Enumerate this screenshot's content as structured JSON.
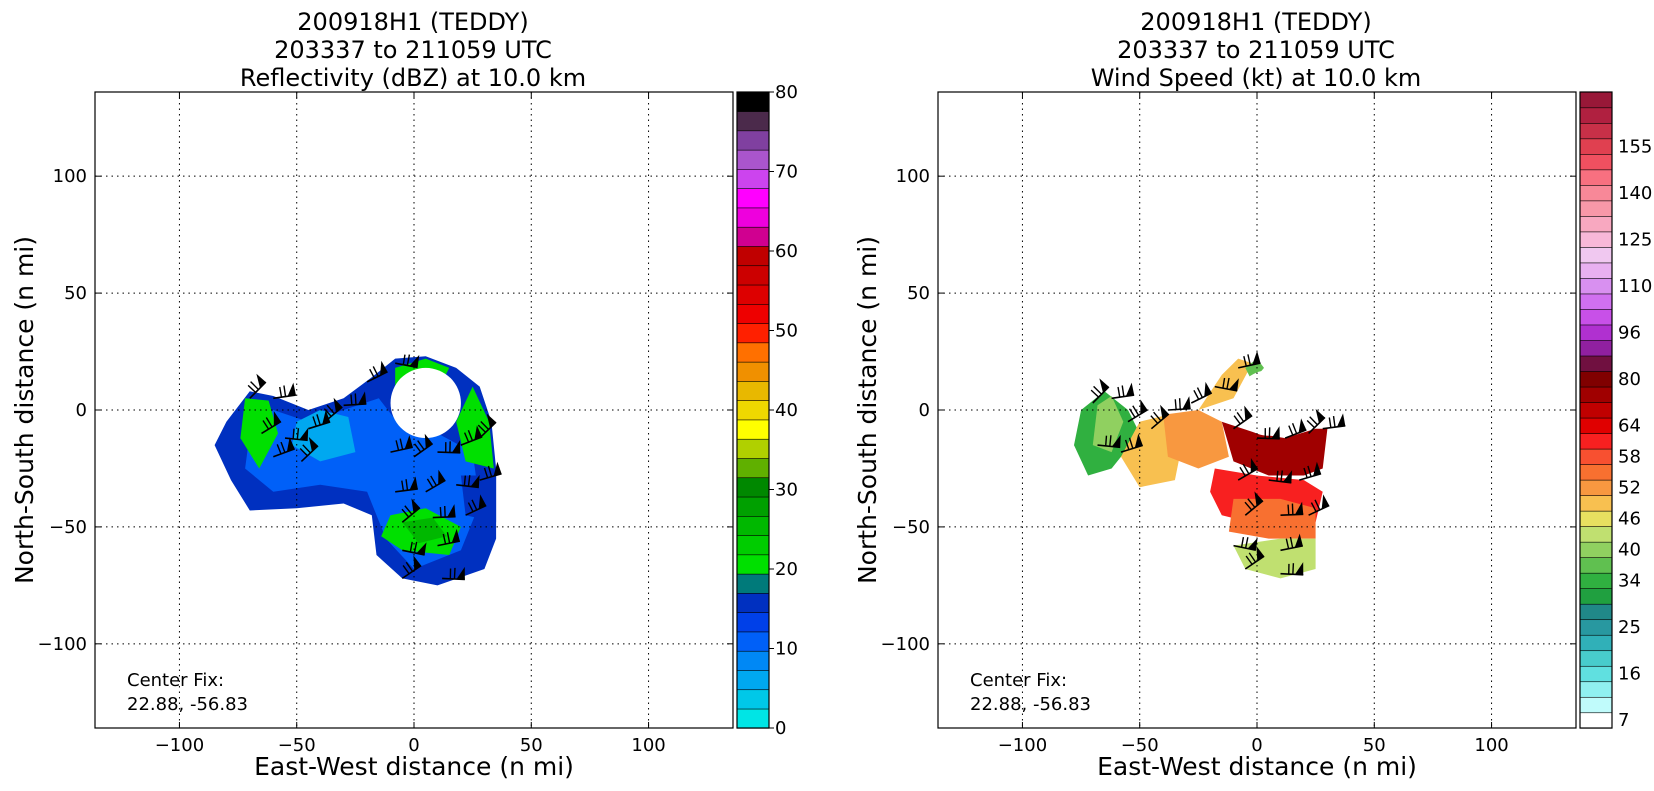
{
  "chart_data": [
    {
      "type": "heatmap",
      "field": "reflectivity",
      "title_lines": [
        "200918H1 (TEDDY)",
        "203337 to 211059 UTC",
        "Reflectivity (dBZ) at 10.0 km"
      ],
      "xlabel": "East-West distance (n mi)",
      "ylabel": "North-South distance (n mi)",
      "xlim": [
        -136,
        136
      ],
      "ylim": [
        -136,
        136
      ],
      "xticks": [
        -100,
        -50,
        0,
        50,
        100
      ],
      "yticks": [
        -100,
        -50,
        0,
        50,
        100
      ],
      "tick_labels_x": [
        "−100",
        "−50",
        "0",
        "50",
        "100"
      ],
      "tick_labels_y": [
        "−100",
        "−50",
        "0",
        "50",
        "100"
      ],
      "grid": true,
      "center_fix_label": "Center Fix:",
      "center_fix_value": "22.88, -56.83",
      "colorbar": {
        "min": 0,
        "max": 80,
        "step": 5,
        "ticks": [
          0,
          10,
          20,
          30,
          40,
          50,
          60,
          70,
          80
        ],
        "tick_labels": [
          "0",
          "10",
          "20",
          "30",
          "40",
          "50",
          "60",
          "70",
          "80"
        ],
        "colors": [
          "#00e5e5",
          "#00c8e8",
          "#00a8f0",
          "#0088f5",
          "#0060f8",
          "#0040e8",
          "#0030c0",
          "#007a7a",
          "#00e000",
          "#00cc00",
          "#00b800",
          "#00a000",
          "#008800",
          "#60b000",
          "#b0d000",
          "#ffff00",
          "#eed800",
          "#e8b800",
          "#f09000",
          "#ff7000",
          "#ff2000",
          "#ee0000",
          "#dd0000",
          "#cc0000",
          "#c00000",
          "#d00090",
          "#ee00dd",
          "#ff00ff",
          "#cc44ee",
          "#aa55cc",
          "#8040a0",
          "#4b2a4b",
          "#000000"
        ]
      },
      "regions": [
        {
          "level": 15,
          "points": [
            [
              -80,
              -5
            ],
            [
              -70,
              8
            ],
            [
              -60,
              6
            ],
            [
              -45,
              0
            ],
            [
              -30,
              5
            ],
            [
              -18,
              14
            ],
            [
              -8,
              22
            ],
            [
              5,
              23
            ],
            [
              18,
              18
            ],
            [
              28,
              10
            ],
            [
              33,
              -5
            ],
            [
              35,
              -25
            ],
            [
              35,
              -55
            ],
            [
              30,
              -68
            ],
            [
              10,
              -75
            ],
            [
              -5,
              -72
            ],
            [
              -16,
              -62
            ],
            [
              -18,
              -45
            ],
            [
              -30,
              -40
            ],
            [
              -50,
              -42
            ],
            [
              -70,
              -43
            ],
            [
              -78,
              -30
            ],
            [
              -85,
              -15
            ]
          ]
        },
        {
          "level": 10,
          "points": [
            [
              -70,
              -10
            ],
            [
              -60,
              0
            ],
            [
              -45,
              -5
            ],
            [
              -30,
              0
            ],
            [
              -15,
              5
            ],
            [
              -5,
              -8
            ],
            [
              10,
              -10
            ],
            [
              25,
              -18
            ],
            [
              28,
              -40
            ],
            [
              20,
              -60
            ],
            [
              0,
              -68
            ],
            [
              -12,
              -55
            ],
            [
              -20,
              -35
            ],
            [
              -40,
              -32
            ],
            [
              -60,
              -35
            ],
            [
              -72,
              -25
            ]
          ]
        },
        {
          "level": 20,
          "points": [
            [
              -8,
              18
            ],
            [
              5,
              22
            ],
            [
              15,
              18
            ],
            [
              10,
              8
            ],
            [
              0,
              5
            ],
            [
              -8,
              10
            ]
          ]
        },
        {
          "level": 20,
          "points": [
            [
              25,
              10
            ],
            [
              32,
              -5
            ],
            [
              34,
              -25
            ],
            [
              22,
              -22
            ],
            [
              18,
              -5
            ]
          ]
        },
        {
          "level": 20,
          "points": [
            [
              -72,
              5
            ],
            [
              -62,
              4
            ],
            [
              -58,
              -10
            ],
            [
              -66,
              -25
            ],
            [
              -74,
              -12
            ]
          ]
        },
        {
          "level": 20,
          "points": [
            [
              -10,
              -45
            ],
            [
              5,
              -42
            ],
            [
              20,
              -50
            ],
            [
              15,
              -62
            ],
            [
              -5,
              -60
            ],
            [
              -14,
              -54
            ]
          ]
        },
        {
          "level": 25,
          "points": [
            [
              -5,
              -48
            ],
            [
              8,
              -46
            ],
            [
              14,
              -54
            ],
            [
              2,
              -57
            ]
          ]
        },
        {
          "level": 15,
          "points": [
            [
              20,
              -28
            ],
            [
              35,
              -28
            ],
            [
              35,
              -48
            ],
            [
              22,
              -45
            ]
          ]
        },
        {
          "level": 5,
          "points": [
            [
              -50,
              -5
            ],
            [
              -40,
              0
            ],
            [
              -28,
              -3
            ],
            [
              -25,
              -18
            ],
            [
              -40,
              -22
            ],
            [
              -52,
              -15
            ]
          ]
        }
      ],
      "eye": {
        "cx": 5,
        "cy": 3,
        "r": 15
      },
      "barbs": [
        [
          -70,
          5
        ],
        [
          -60,
          5
        ],
        [
          -65,
          -10
        ],
        [
          -55,
          -12
        ],
        [
          -45,
          -8
        ],
        [
          -38,
          -5
        ],
        [
          -30,
          2
        ],
        [
          -20,
          12
        ],
        [
          -8,
          20
        ],
        [
          -10,
          -18
        ],
        [
          0,
          -20
        ],
        [
          10,
          -18
        ],
        [
          20,
          -15
        ],
        [
          28,
          -12
        ],
        [
          -8,
          -35
        ],
        [
          5,
          -35
        ],
        [
          18,
          -32
        ],
        [
          28,
          -30
        ],
        [
          -5,
          -48
        ],
        [
          8,
          -46
        ],
        [
          22,
          -45
        ],
        [
          -5,
          -60
        ],
        [
          10,
          -58
        ],
        [
          -5,
          -72
        ],
        [
          12,
          -72
        ],
        [
          -60,
          -20
        ],
        [
          -48,
          -22
        ]
      ]
    },
    {
      "type": "heatmap",
      "field": "wind_speed",
      "title_lines": [
        "200918H1 (TEDDY)",
        "203337 to 211059 UTC",
        "Wind Speed (kt) at 10.0 km"
      ],
      "xlabel": "East-West distance (n mi)",
      "ylabel": "North-South distance (n mi)",
      "xlim": [
        -136,
        136
      ],
      "ylim": [
        -136,
        136
      ],
      "xticks": [
        -100,
        -50,
        0,
        50,
        100
      ],
      "yticks": [
        -100,
        -50,
        0,
        50,
        100
      ],
      "tick_labels_x": [
        "−100",
        "−50",
        "0",
        "50",
        "100"
      ],
      "tick_labels_y": [
        "−100",
        "−50",
        "0",
        "50",
        "100"
      ],
      "grid": true,
      "center_fix_label": "Center Fix:",
      "center_fix_value": "22.88, -56.83",
      "colorbar": {
        "tick_labels": [
          "7",
          "16",
          "25",
          "34",
          "40",
          "46",
          "52",
          "58",
          "64",
          "80",
          "96",
          "110",
          "125",
          "140",
          "155"
        ],
        "tick_bins": [
          0,
          3,
          6,
          9,
          11,
          13,
          15,
          17,
          19,
          22,
          25,
          28,
          31,
          34,
          37
        ],
        "colors": [
          "#ffffff",
          "#c0fbfb",
          "#90f0f0",
          "#60e0e0",
          "#48cccc",
          "#30b0b8",
          "#2898a0",
          "#208888",
          "#20a040",
          "#30b040",
          "#60c050",
          "#90d060",
          "#c0e070",
          "#e8e060",
          "#f8c050",
          "#f89840",
          "#f87030",
          "#f85030",
          "#f82020",
          "#e00000",
          "#c00000",
          "#a00000",
          "#800000",
          "#701040",
          "#9020a0",
          "#b030d0",
          "#c850e8",
          "#d070f0",
          "#d890f0",
          "#e8b0f0",
          "#f0c8f0",
          "#f8b8d8",
          "#f8a8c0",
          "#f898a8",
          "#f88898",
          "#f87080",
          "#f05060",
          "#e04050",
          "#c83048",
          "#b02040",
          "#981838"
        ]
      },
      "regions": [
        {
          "level": 34,
          "points": [
            [
              -75,
              0
            ],
            [
              -65,
              8
            ],
            [
              -55,
              0
            ],
            [
              -50,
              -10
            ],
            [
              -62,
              -25
            ],
            [
              -72,
              -28
            ],
            [
              -78,
              -15
            ]
          ]
        },
        {
          "level": 44,
          "points": [
            [
              -68,
              2
            ],
            [
              -62,
              6
            ],
            [
              -57,
              -5
            ],
            [
              -62,
              -18
            ],
            [
              -70,
              -15
            ]
          ]
        },
        {
          "level": 56,
          "points": [
            [
              -50,
              -5
            ],
            [
              -38,
              -2
            ],
            [
              -30,
              -5
            ],
            [
              -35,
              -30
            ],
            [
              -50,
              -33
            ],
            [
              -58,
              -20
            ]
          ]
        },
        {
          "level": 60,
          "points": [
            [
              -40,
              -2
            ],
            [
              -25,
              0
            ],
            [
              -15,
              -5
            ],
            [
              -12,
              -20
            ],
            [
              -25,
              -25
            ],
            [
              -38,
              -20
            ]
          ]
        },
        {
          "level": 56,
          "points": [
            [
              -25,
              0
            ],
            [
              -15,
              15
            ],
            [
              -8,
              22
            ],
            [
              -2,
              20
            ],
            [
              -10,
              5
            ]
          ]
        },
        {
          "level": 80,
          "points": [
            [
              -15,
              -5
            ],
            [
              0,
              -10
            ],
            [
              12,
              -12
            ],
            [
              25,
              -8
            ],
            [
              30,
              -8
            ],
            [
              28,
              -25
            ],
            [
              20,
              -28
            ],
            [
              5,
              -28
            ],
            [
              -10,
              -22
            ]
          ]
        },
        {
          "level": 70,
          "points": [
            [
              -18,
              -25
            ],
            [
              0,
              -28
            ],
            [
              20,
              -30
            ],
            [
              28,
              -35
            ],
            [
              25,
              -48
            ],
            [
              5,
              -50
            ],
            [
              -15,
              -45
            ],
            [
              -20,
              -35
            ]
          ]
        },
        {
          "level": 62,
          "points": [
            [
              -10,
              -38
            ],
            [
              10,
              -38
            ],
            [
              25,
              -42
            ],
            [
              25,
              -55
            ],
            [
              5,
              -55
            ],
            [
              -12,
              -52
            ]
          ]
        },
        {
          "level": 48,
          "points": [
            [
              -10,
              -58
            ],
            [
              10,
              -55
            ],
            [
              25,
              -55
            ],
            [
              25,
              -68
            ],
            [
              10,
              -72
            ],
            [
              -5,
              -68
            ]
          ]
        },
        {
          "level": 40,
          "points": [
            [
              -5,
              18
            ],
            [
              0,
              22
            ],
            [
              3,
              18
            ],
            [
              -2,
              12
            ]
          ]
        }
      ],
      "eye": {
        "cx": 5,
        "cy": 3,
        "r": 14
      },
      "barbs": [
        [
          -70,
          3
        ],
        [
          -62,
          5
        ],
        [
          -55,
          -5
        ],
        [
          -68,
          -15
        ],
        [
          -58,
          -18
        ],
        [
          -45,
          -8
        ],
        [
          -38,
          0
        ],
        [
          -28,
          3
        ],
        [
          -18,
          10
        ],
        [
          -8,
          18
        ],
        [
          -10,
          -8
        ],
        [
          0,
          -12
        ],
        [
          12,
          -12
        ],
        [
          22,
          -10
        ],
        [
          28,
          -8
        ],
        [
          -8,
          -30
        ],
        [
          5,
          -30
        ],
        [
          18,
          -30
        ],
        [
          -5,
          -45
        ],
        [
          10,
          -45
        ],
        [
          22,
          -45
        ],
        [
          -10,
          -58
        ],
        [
          10,
          -60
        ],
        [
          -5,
          -68
        ],
        [
          10,
          -70
        ]
      ]
    }
  ]
}
